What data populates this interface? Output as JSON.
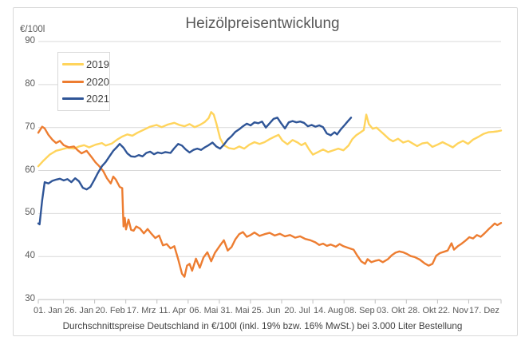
{
  "title": "Heizölpreisentwicklung",
  "y_axis_unit": "€/100l",
  "footer": "Durchschnittspreise Deutschland in €/100l (inkl. 19% bzw. 16%  MwSt.) bei 3.000 Liter Bestellung",
  "legend": {
    "position": "top-left-inside",
    "items": [
      {
        "label": "2019",
        "color": "#FFD45C"
      },
      {
        "label": "2020",
        "color": "#ED7D31"
      },
      {
        "label": "2021",
        "color": "#2F5597"
      }
    ]
  },
  "colors": {
    "grid": "#D9D9D9",
    "axis": "#BFBFBF",
    "text": "#595959",
    "caption_text": "#404040",
    "background": "#FFFFFF",
    "border": "#D9D9D9"
  },
  "chart_data": {
    "type": "line",
    "title": "Heizölpreisentwicklung",
    "ylabel": "€/100l",
    "xlabel": "",
    "ylim": [
      30,
      90
    ],
    "y_ticks": [
      30,
      40,
      50,
      60,
      70,
      80,
      90
    ],
    "grid": "horizontal",
    "legend_position": "top-left-inside",
    "x_unit": "day-of-year",
    "x_range_days": [
      0,
      364
    ],
    "x_tick_days": [
      0,
      25,
      50,
      75,
      100,
      125,
      150,
      175,
      200,
      225,
      250,
      275,
      300,
      325,
      350
    ],
    "x_ticklabels": [
      "01. Jan",
      "26. Jan",
      "20. Feb",
      "17. Mrz",
      "11. Apr",
      "06. Mai",
      "31. Mai",
      "25. Jun",
      "20. Jul",
      "14. Aug",
      "08. Sep",
      "03. Okt",
      "28. Okt",
      "22. Nov",
      "17. Dez"
    ],
    "series": [
      {
        "name": "2019",
        "color": "#FFD45C",
        "points": [
          [
            0,
            61.0
          ],
          [
            4,
            62.3
          ],
          [
            9,
            63.7
          ],
          [
            14,
            64.6
          ],
          [
            18,
            64.9
          ],
          [
            23,
            65.3
          ],
          [
            28,
            65.1
          ],
          [
            32,
            65.6
          ],
          [
            36,
            65.9
          ],
          [
            40,
            65.4
          ],
          [
            45,
            66.0
          ],
          [
            50,
            66.4
          ],
          [
            53,
            65.8
          ],
          [
            58,
            66.3
          ],
          [
            62,
            67.2
          ],
          [
            66,
            67.9
          ],
          [
            70,
            68.4
          ],
          [
            74,
            68.1
          ],
          [
            78,
            68.8
          ],
          [
            83,
            69.5
          ],
          [
            88,
            70.2
          ],
          [
            93,
            70.6
          ],
          [
            97,
            70.1
          ],
          [
            102,
            70.7
          ],
          [
            107,
            71.1
          ],
          [
            111,
            70.6
          ],
          [
            115,
            70.3
          ],
          [
            119,
            70.8
          ],
          [
            123,
            70.1
          ],
          [
            127,
            70.6
          ],
          [
            131,
            71.3
          ],
          [
            134,
            72.2
          ],
          [
            136,
            73.6
          ],
          [
            138,
            73.0
          ],
          [
            140,
            71.0
          ],
          [
            143,
            67.5
          ],
          [
            146,
            65.9
          ],
          [
            150,
            65.2
          ],
          [
            154,
            65.0
          ],
          [
            158,
            65.6
          ],
          [
            162,
            65.1
          ],
          [
            166,
            66.0
          ],
          [
            170,
            66.6
          ],
          [
            174,
            66.2
          ],
          [
            178,
            66.6
          ],
          [
            182,
            67.3
          ],
          [
            186,
            67.9
          ],
          [
            189,
            68.3
          ],
          [
            192,
            67.0
          ],
          [
            196,
            66.1
          ],
          [
            200,
            67.1
          ],
          [
            204,
            66.5
          ],
          [
            207,
            65.9
          ],
          [
            210,
            66.4
          ],
          [
            213,
            64.9
          ],
          [
            216,
            63.7
          ],
          [
            220,
            64.3
          ],
          [
            224,
            64.9
          ],
          [
            228,
            64.3
          ],
          [
            232,
            64.7
          ],
          [
            236,
            65.1
          ],
          [
            240,
            64.7
          ],
          [
            244,
            65.8
          ],
          [
            247,
            67.3
          ],
          [
            250,
            68.2
          ],
          [
            253,
            68.8
          ],
          [
            256,
            69.4
          ],
          [
            258,
            73.0
          ],
          [
            260,
            70.8
          ],
          [
            263,
            69.7
          ],
          [
            266,
            70.0
          ],
          [
            269,
            69.2
          ],
          [
            272,
            68.4
          ],
          [
            276,
            67.3
          ],
          [
            279,
            66.8
          ],
          [
            283,
            67.4
          ],
          [
            287,
            66.5
          ],
          [
            291,
            66.9
          ],
          [
            295,
            66.2
          ],
          [
            298,
            65.7
          ],
          [
            302,
            66.3
          ],
          [
            306,
            66.5
          ],
          [
            310,
            65.5
          ],
          [
            314,
            66.0
          ],
          [
            318,
            66.6
          ],
          [
            322,
            66.0
          ],
          [
            326,
            65.4
          ],
          [
            330,
            66.3
          ],
          [
            334,
            66.9
          ],
          [
            338,
            66.2
          ],
          [
            342,
            67.2
          ],
          [
            346,
            67.8
          ],
          [
            350,
            68.5
          ],
          [
            354,
            68.9
          ],
          [
            358,
            69.0
          ],
          [
            361,
            69.1
          ],
          [
            364,
            69.3
          ]
        ]
      },
      {
        "name": "2020",
        "color": "#ED7D31",
        "points": [
          [
            0,
            68.8
          ],
          [
            3,
            70.2
          ],
          [
            5,
            69.8
          ],
          [
            8,
            68.3
          ],
          [
            11,
            67.2
          ],
          [
            14,
            66.4
          ],
          [
            17,
            66.9
          ],
          [
            20,
            65.9
          ],
          [
            24,
            65.4
          ],
          [
            28,
            65.6
          ],
          [
            31,
            64.7
          ],
          [
            34,
            64.0
          ],
          [
            38,
            64.6
          ],
          [
            42,
            63.1
          ],
          [
            45,
            61.9
          ],
          [
            48,
            61.0
          ],
          [
            51,
            59.9
          ],
          [
            54,
            58.2
          ],
          [
            57,
            57.0
          ],
          [
            59,
            58.6
          ],
          [
            61,
            57.9
          ],
          [
            64,
            56.2
          ],
          [
            66,
            55.9
          ],
          [
            67,
            47.0
          ],
          [
            68,
            49.0
          ],
          [
            69,
            46.3
          ],
          [
            71,
            48.6
          ],
          [
            73,
            46.2
          ],
          [
            75,
            46.0
          ],
          [
            77,
            47.0
          ],
          [
            80,
            46.5
          ],
          [
            83,
            45.4
          ],
          [
            86,
            46.4
          ],
          [
            89,
            45.3
          ],
          [
            92,
            44.3
          ],
          [
            95,
            44.9
          ],
          [
            98,
            42.6
          ],
          [
            101,
            42.9
          ],
          [
            104,
            41.9
          ],
          [
            107,
            42.4
          ],
          [
            110,
            39.4
          ],
          [
            113,
            36.0
          ],
          [
            115,
            35.3
          ],
          [
            117,
            37.9
          ],
          [
            119,
            38.3
          ],
          [
            121,
            36.7
          ],
          [
            124,
            39.5
          ],
          [
            127,
            37.4
          ],
          [
            130,
            39.8
          ],
          [
            133,
            41.0
          ],
          [
            136,
            38.9
          ],
          [
            139,
            40.9
          ],
          [
            143,
            42.6
          ],
          [
            146,
            43.8
          ],
          [
            149,
            41.4
          ],
          [
            152,
            42.2
          ],
          [
            155,
            44.0
          ],
          [
            158,
            45.2
          ],
          [
            161,
            45.7
          ],
          [
            164,
            44.6
          ],
          [
            167,
            45.0
          ],
          [
            170,
            45.6
          ],
          [
            174,
            44.8
          ],
          [
            178,
            45.2
          ],
          [
            182,
            45.5
          ],
          [
            186,
            44.9
          ],
          [
            190,
            45.3
          ],
          [
            194,
            44.7
          ],
          [
            198,
            45.0
          ],
          [
            202,
            44.4
          ],
          [
            206,
            44.7
          ],
          [
            210,
            44.1
          ],
          [
            214,
            43.8
          ],
          [
            218,
            43.3
          ],
          [
            221,
            42.7
          ],
          [
            224,
            43.0
          ],
          [
            227,
            42.5
          ],
          [
            230,
            42.8
          ],
          [
            234,
            42.3
          ],
          [
            237,
            42.9
          ],
          [
            240,
            42.4
          ],
          [
            244,
            42.0
          ],
          [
            248,
            41.6
          ],
          [
            251,
            40.2
          ],
          [
            254,
            38.9
          ],
          [
            257,
            38.3
          ],
          [
            259,
            39.4
          ],
          [
            262,
            38.7
          ],
          [
            265,
            39.0
          ],
          [
            268,
            39.2
          ],
          [
            271,
            38.7
          ],
          [
            275,
            39.4
          ],
          [
            278,
            40.3
          ],
          [
            281,
            40.9
          ],
          [
            284,
            41.2
          ],
          [
            287,
            41.0
          ],
          [
            290,
            40.6
          ],
          [
            293,
            40.1
          ],
          [
            296,
            39.9
          ],
          [
            300,
            39.3
          ],
          [
            304,
            38.4
          ],
          [
            307,
            37.9
          ],
          [
            310,
            38.3
          ],
          [
            313,
            40.2
          ],
          [
            316,
            40.8
          ],
          [
            319,
            41.1
          ],
          [
            322,
            41.4
          ],
          [
            325,
            43.1
          ],
          [
            327,
            41.6
          ],
          [
            330,
            42.4
          ],
          [
            333,
            43.0
          ],
          [
            336,
            43.7
          ],
          [
            339,
            44.5
          ],
          [
            342,
            44.2
          ],
          [
            345,
            45.0
          ],
          [
            348,
            44.6
          ],
          [
            351,
            45.4
          ],
          [
            354,
            46.3
          ],
          [
            357,
            47.1
          ],
          [
            359,
            47.7
          ],
          [
            361,
            47.3
          ],
          [
            364,
            47.8
          ]
        ]
      },
      {
        "name": "2021",
        "color": "#2F5597",
        "points": [
          [
            0,
            47.7
          ],
          [
            1,
            47.5
          ],
          [
            3,
            53.0
          ],
          [
            5,
            57.3
          ],
          [
            8,
            57.0
          ],
          [
            11,
            57.6
          ],
          [
            14,
            57.9
          ],
          [
            17,
            58.1
          ],
          [
            20,
            57.7
          ],
          [
            23,
            58.0
          ],
          [
            26,
            57.3
          ],
          [
            29,
            58.2
          ],
          [
            32,
            57.5
          ],
          [
            35,
            56.0
          ],
          [
            38,
            55.6
          ],
          [
            41,
            56.2
          ],
          [
            44,
            57.8
          ],
          [
            47,
            59.5
          ],
          [
            50,
            61.0
          ],
          [
            53,
            62.0
          ],
          [
            56,
            63.3
          ],
          [
            59,
            64.6
          ],
          [
            62,
            65.5
          ],
          [
            64,
            66.2
          ],
          [
            67,
            65.3
          ],
          [
            70,
            64.0
          ],
          [
            73,
            63.3
          ],
          [
            76,
            63.2
          ],
          [
            79,
            63.6
          ],
          [
            82,
            63.3
          ],
          [
            85,
            64.1
          ],
          [
            88,
            64.4
          ],
          [
            91,
            63.8
          ],
          [
            94,
            64.2
          ],
          [
            97,
            64.0
          ],
          [
            100,
            64.3
          ],
          [
            104,
            64.1
          ],
          [
            107,
            65.2
          ],
          [
            110,
            66.2
          ],
          [
            113,
            65.8
          ],
          [
            116,
            64.9
          ],
          [
            119,
            64.2
          ],
          [
            122,
            64.8
          ],
          [
            125,
            65.1
          ],
          [
            128,
            64.8
          ],
          [
            131,
            65.4
          ],
          [
            134,
            65.9
          ],
          [
            137,
            66.5
          ],
          [
            140,
            65.6
          ],
          [
            143,
            65.1
          ],
          [
            146,
            66.0
          ],
          [
            149,
            67.2
          ],
          [
            152,
            68.0
          ],
          [
            155,
            69.0
          ],
          [
            158,
            69.6
          ],
          [
            161,
            70.3
          ],
          [
            164,
            70.9
          ],
          [
            167,
            70.5
          ],
          [
            170,
            71.2
          ],
          [
            173,
            71.0
          ],
          [
            176,
            71.4
          ],
          [
            179,
            70.0
          ],
          [
            182,
            71.0
          ],
          [
            185,
            72.0
          ],
          [
            188,
            72.3
          ],
          [
            191,
            71.0
          ],
          [
            194,
            69.8
          ],
          [
            197,
            71.2
          ],
          [
            200,
            71.5
          ],
          [
            203,
            71.2
          ],
          [
            206,
            71.4
          ],
          [
            209,
            71.1
          ],
          [
            212,
            70.3
          ],
          [
            215,
            70.6
          ],
          [
            218,
            70.2
          ],
          [
            221,
            70.5
          ],
          [
            224,
            70.1
          ],
          [
            227,
            68.6
          ],
          [
            230,
            68.2
          ],
          [
            233,
            68.9
          ],
          [
            235,
            68.4
          ],
          [
            238,
            69.6
          ],
          [
            241,
            70.6
          ],
          [
            243,
            71.3
          ],
          [
            246,
            72.3
          ]
        ]
      }
    ]
  }
}
